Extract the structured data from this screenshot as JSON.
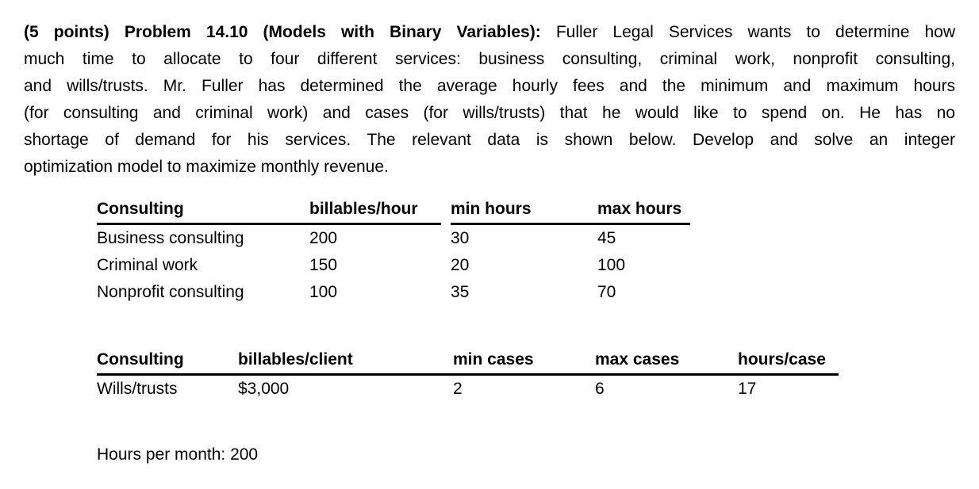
{
  "page": {
    "background_color": "#ffffff",
    "text_color": "#000000"
  },
  "paragraph": {
    "line1_bold": "(5 points) Problem 14.10 (Models with Binary Variables):",
    "line1_rest": "Fuller Legal Services wants to determine how",
    "line2": "much time to allocate to four different services: business consulting, criminal work, nonprofit consulting,",
    "line3": "and wills/trusts. Mr. Fuller has determined the average hourly fees and the minimum and maximum hours",
    "line4": "(for consulting and criminal work) and cases (for wills/trusts) that he would like to spend on. He has no",
    "line5": "shortage of demand for his services. The relevant data is shown below. Develop and solve an integer",
    "line6": "optimization model to maximize monthly revenue."
  },
  "hours_table": {
    "headers": [
      "Consulting",
      "billables/hour",
      "min hours",
      "max hours"
    ],
    "rows": [
      [
        "Business consulting",
        "200",
        "30",
        "45"
      ],
      [
        "Criminal work",
        "150",
        "20",
        "100"
      ],
      [
        "Nonprofit consulting",
        "100",
        "35",
        "70"
      ]
    ]
  },
  "cases_table": {
    "headers": [
      "Consulting",
      "billables/client",
      "min cases",
      "max cases",
      "hours/case"
    ],
    "rows": [
      [
        "Wills/trusts",
        "$3,000",
        "2",
        "6",
        "17"
      ]
    ]
  },
  "footer": {
    "hours_per_month": "Hours per month: 200"
  }
}
